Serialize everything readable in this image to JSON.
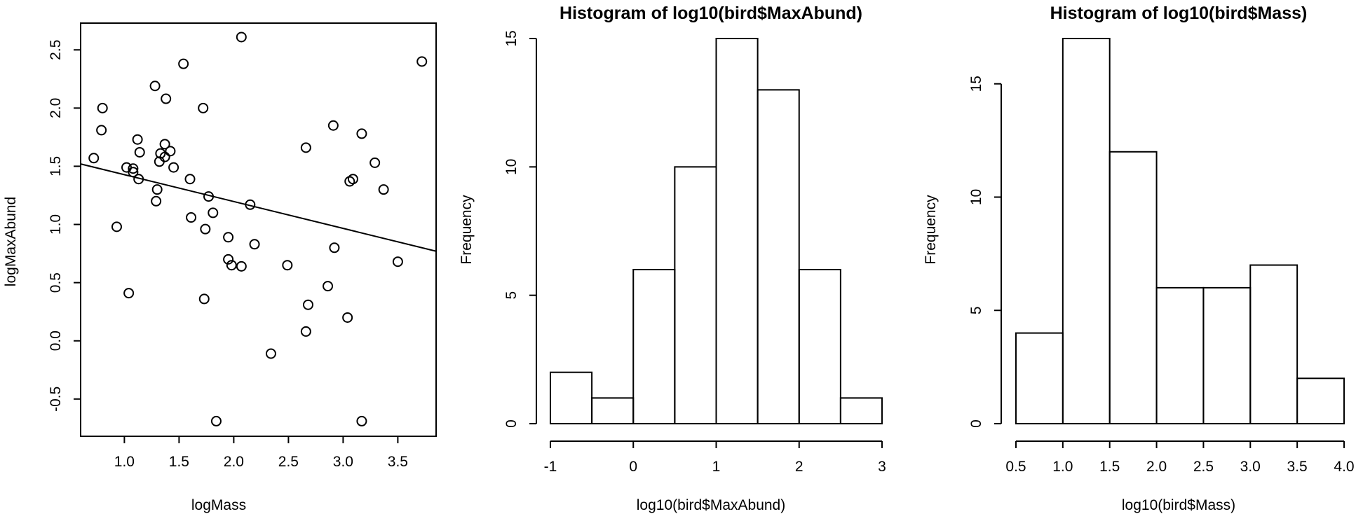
{
  "chart_data": [
    {
      "type": "scatter",
      "title": "",
      "xlabel": "logMass",
      "ylabel": "logMaxAbund",
      "xlim": [
        0.6,
        3.85
      ],
      "ylim": [
        -0.82,
        2.73
      ],
      "xticks": [
        1.0,
        1.5,
        2.0,
        2.5,
        3.0,
        3.5
      ],
      "xtick_labels": [
        "1.0",
        "1.5",
        "2.0",
        "2.5",
        "3.0",
        "3.5"
      ],
      "yticks": [
        -0.5,
        0.0,
        0.5,
        1.0,
        1.5,
        2.0,
        2.5
      ],
      "ytick_labels": [
        "-0.5",
        "0.0",
        "0.5",
        "1.0",
        "1.5",
        "2.0",
        "2.5"
      ],
      "grid": false,
      "points": [
        {
          "x": 0.72,
          "y": 1.57
        },
        {
          "x": 0.79,
          "y": 1.81
        },
        {
          "x": 0.8,
          "y": 2.0
        },
        {
          "x": 0.93,
          "y": 0.98
        },
        {
          "x": 1.02,
          "y": 1.49
        },
        {
          "x": 1.04,
          "y": 0.41
        },
        {
          "x": 1.08,
          "y": 1.48
        },
        {
          "x": 1.08,
          "y": 1.45
        },
        {
          "x": 1.12,
          "y": 1.73
        },
        {
          "x": 1.13,
          "y": 1.39
        },
        {
          "x": 1.14,
          "y": 1.62
        },
        {
          "x": 1.28,
          "y": 2.19
        },
        {
          "x": 1.29,
          "y": 1.2
        },
        {
          "x": 1.3,
          "y": 1.3
        },
        {
          "x": 1.32,
          "y": 1.54
        },
        {
          "x": 1.33,
          "y": 1.61
        },
        {
          "x": 1.37,
          "y": 1.69
        },
        {
          "x": 1.37,
          "y": 1.58
        },
        {
          "x": 1.38,
          "y": 2.08
        },
        {
          "x": 1.42,
          "y": 1.63
        },
        {
          "x": 1.45,
          "y": 1.49
        },
        {
          "x": 1.54,
          "y": 2.38
        },
        {
          "x": 1.6,
          "y": 1.39
        },
        {
          "x": 1.61,
          "y": 1.06
        },
        {
          "x": 1.72,
          "y": 2.0
        },
        {
          "x": 1.73,
          "y": 0.36
        },
        {
          "x": 1.74,
          "y": 0.96
        },
        {
          "x": 1.77,
          "y": 1.24
        },
        {
          "x": 1.81,
          "y": 1.1
        },
        {
          "x": 1.84,
          "y": -0.69
        },
        {
          "x": 1.95,
          "y": 0.89
        },
        {
          "x": 1.95,
          "y": 0.7
        },
        {
          "x": 1.98,
          "y": 0.65
        },
        {
          "x": 2.07,
          "y": 0.64
        },
        {
          "x": 2.07,
          "y": 2.61
        },
        {
          "x": 2.15,
          "y": 1.17
        },
        {
          "x": 2.19,
          "y": 0.83
        },
        {
          "x": 2.34,
          "y": -0.11
        },
        {
          "x": 2.49,
          "y": 0.65
        },
        {
          "x": 2.66,
          "y": 1.66
        },
        {
          "x": 2.66,
          "y": 0.08
        },
        {
          "x": 2.68,
          "y": 0.31
        },
        {
          "x": 2.86,
          "y": 0.47
        },
        {
          "x": 2.91,
          "y": 1.85
        },
        {
          "x": 2.92,
          "y": 0.8
        },
        {
          "x": 3.04,
          "y": 0.2
        },
        {
          "x": 3.06,
          "y": 1.37
        },
        {
          "x": 3.09,
          "y": 1.39
        },
        {
          "x": 3.17,
          "y": 1.78
        },
        {
          "x": 3.17,
          "y": -0.69
        },
        {
          "x": 3.29,
          "y": 1.53
        },
        {
          "x": 3.37,
          "y": 1.3
        },
        {
          "x": 3.5,
          "y": 0.68
        },
        {
          "x": 3.72,
          "y": 2.4
        }
      ],
      "fit_line": {
        "x": [
          0.6,
          3.85
        ],
        "y": [
          1.52,
          0.77
        ]
      }
    },
    {
      "type": "bar",
      "title": "Histogram of log10(bird$MaxAbund)",
      "xlabel": "log10(bird$MaxAbund)",
      "ylabel": "Frequency",
      "xlim": [
        -1.0,
        3.0
      ],
      "ylim": [
        0,
        15
      ],
      "xticks": [
        -1,
        0,
        1,
        2,
        3
      ],
      "xtick_labels": [
        "-1",
        "0",
        "1",
        "2",
        "3"
      ],
      "yticks": [
        0,
        5,
        10,
        15
      ],
      "ytick_labels": [
        "0",
        "5",
        "10",
        "15"
      ],
      "grid": false,
      "bin_edges": [
        -1.0,
        -0.5,
        0.0,
        0.5,
        1.0,
        1.5,
        2.0,
        2.5,
        3.0
      ],
      "values": [
        2,
        1,
        6,
        10,
        15,
        13,
        6,
        1
      ]
    },
    {
      "type": "bar",
      "title": "Histogram of log10(bird$Mass)",
      "xlabel": "log10(bird$Mass)",
      "ylabel": "Frequency",
      "xlim": [
        0.5,
        4.0
      ],
      "ylim": [
        0,
        17
      ],
      "xticks": [
        0.5,
        1.0,
        1.5,
        2.0,
        2.5,
        3.0,
        3.5,
        4.0
      ],
      "xtick_labels": [
        "0.5",
        "1.0",
        "1.5",
        "2.0",
        "2.5",
        "3.0",
        "3.5",
        "4.0"
      ],
      "yticks": [
        0,
        5,
        10,
        15
      ],
      "ytick_labels": [
        "0",
        "5",
        "10",
        "15"
      ],
      "grid": false,
      "bin_edges": [
        0.5,
        1.0,
        1.5,
        2.0,
        2.5,
        3.0,
        3.5,
        4.0
      ],
      "values": [
        4,
        17,
        12,
        6,
        6,
        7,
        2
      ]
    }
  ]
}
